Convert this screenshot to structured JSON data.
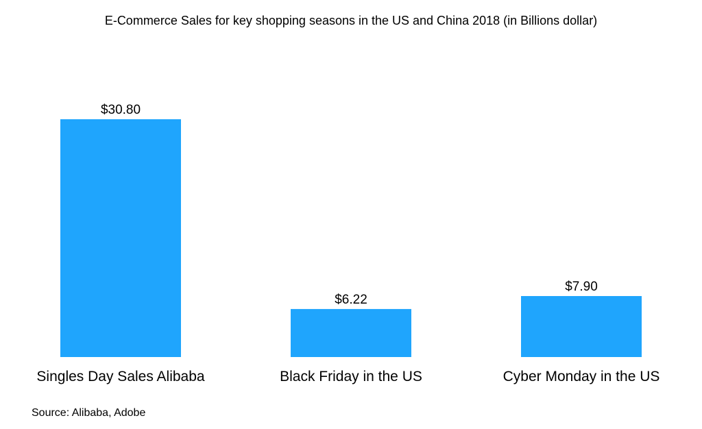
{
  "chart_data": {
    "type": "bar",
    "title": "E-Commerce Sales for key shopping seasons in the US and China 2018 (in Billions dollar)",
    "categories": [
      "Singles Day Sales Alibaba",
      "Black Friday in the US",
      "Cyber Monday in the US"
    ],
    "values": [
      30.8,
      6.22,
      7.9
    ],
    "data_labels": [
      "$30.80",
      "$6.22",
      "$7.90"
    ],
    "xlabel": "",
    "ylabel": "",
    "ylim": [
      0,
      30.8
    ],
    "grid": false,
    "bar_color": "#1FA5FD"
  },
  "source": "Source: Alibaba, Adobe"
}
